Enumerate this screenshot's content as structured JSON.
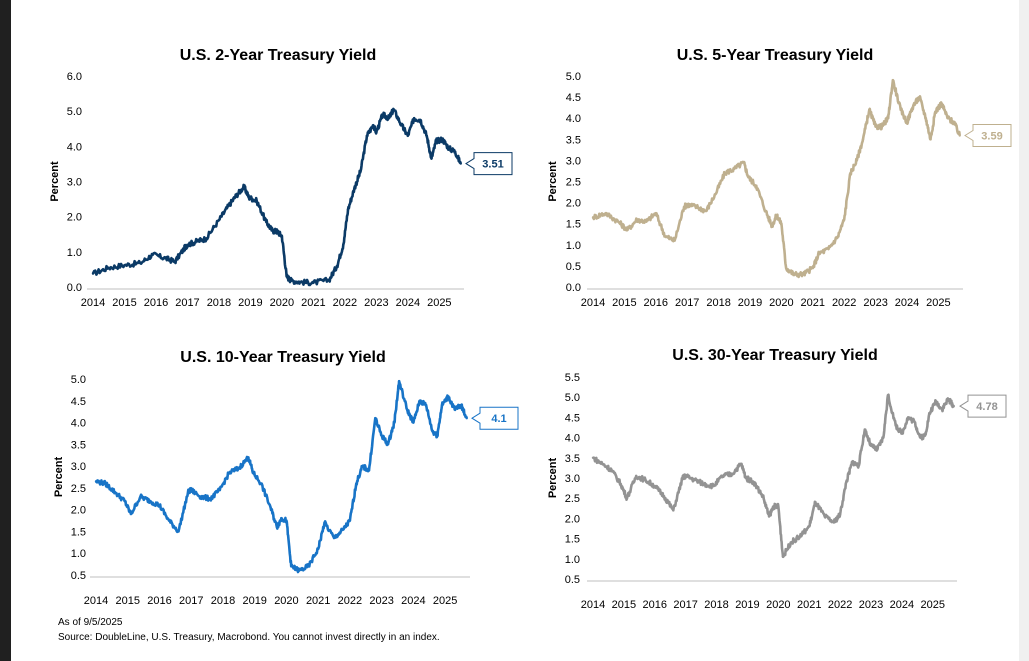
{
  "footnote": {
    "as_of": "As of 9/5/2025",
    "source": "Source: DoubleLine, U.S. Treasury, Macrobond. You cannot invest directly in an index."
  },
  "chart_data": [
    {
      "type": "line",
      "title": "U.S. 2-Year Treasury Yield",
      "ylabel": "Percent",
      "xlabel": "",
      "ylim": [
        0,
        6
      ],
      "yticks": [
        "0.0",
        "1.0",
        "2.0",
        "3.0",
        "4.0",
        "5.0",
        "6.0"
      ],
      "xticks": [
        "2014",
        "2015",
        "2016",
        "2017",
        "2018",
        "2019",
        "2020",
        "2021",
        "2022",
        "2023",
        "2024",
        "2025"
      ],
      "color": "#0b3a66",
      "last_value_label": "3.51",
      "x": [
        2014.0,
        2014.5,
        2015.0,
        2015.5,
        2015.9,
        2016.3,
        2016.6,
        2016.9,
        2017.0,
        2017.3,
        2017.6,
        2018.0,
        2018.3,
        2018.55,
        2018.8,
        2018.95,
        2019.2,
        2019.5,
        2019.7,
        2019.85,
        2020.0,
        2020.15,
        2020.3,
        2020.6,
        2021.0,
        2021.5,
        2021.75,
        2021.95,
        2022.1,
        2022.3,
        2022.5,
        2022.7,
        2022.9,
        2023.0,
        2023.2,
        2023.4,
        2023.55,
        2023.8,
        2024.0,
        2024.2,
        2024.4,
        2024.6,
        2024.75,
        2024.9,
        2025.1,
        2025.3,
        2025.5,
        2025.68
      ],
      "values": [
        0.38,
        0.55,
        0.62,
        0.68,
        0.92,
        0.82,
        0.72,
        1.1,
        1.2,
        1.3,
        1.38,
        1.9,
        2.3,
        2.6,
        2.85,
        2.55,
        2.45,
        1.85,
        1.6,
        1.58,
        1.45,
        0.3,
        0.18,
        0.14,
        0.12,
        0.2,
        0.6,
        1.2,
        2.2,
        2.8,
        3.3,
        4.3,
        4.6,
        4.4,
        4.9,
        4.8,
        5.05,
        4.6,
        4.3,
        4.8,
        4.75,
        4.3,
        3.65,
        4.15,
        4.2,
        3.95,
        3.85,
        3.51
      ]
    },
    {
      "type": "line",
      "title": "U.S. 5-Year Treasury Yield",
      "ylabel": "Percent",
      "xlabel": "",
      "ylim": [
        0,
        5
      ],
      "yticks": [
        "0.0",
        "0.5",
        "1.0",
        "1.5",
        "2.0",
        "2.5",
        "3.0",
        "3.5",
        "4.0",
        "4.5",
        "5.0"
      ],
      "xticks": [
        "2014",
        "2015",
        "2016",
        "2017",
        "2018",
        "2019",
        "2020",
        "2021",
        "2022",
        "2023",
        "2024",
        "2025"
      ],
      "color": "#bfb08f",
      "last_value_label": "3.59",
      "x": [
        2014.0,
        2014.4,
        2014.8,
        2015.1,
        2015.4,
        2015.7,
        2016.0,
        2016.3,
        2016.6,
        2016.9,
        2017.0,
        2017.3,
        2017.6,
        2017.9,
        2018.2,
        2018.5,
        2018.8,
        2018.95,
        2019.2,
        2019.5,
        2019.7,
        2019.85,
        2020.0,
        2020.15,
        2020.4,
        2020.7,
        2021.0,
        2021.2,
        2021.5,
        2021.8,
        2022.0,
        2022.2,
        2022.4,
        2022.6,
        2022.8,
        2023.0,
        2023.2,
        2023.4,
        2023.55,
        2023.8,
        2024.0,
        2024.2,
        2024.4,
        2024.6,
        2024.75,
        2024.9,
        2025.1,
        2025.3,
        2025.5,
        2025.68
      ],
      "values": [
        1.65,
        1.75,
        1.55,
        1.35,
        1.6,
        1.55,
        1.75,
        1.2,
        1.1,
        1.9,
        1.95,
        1.9,
        1.8,
        2.2,
        2.7,
        2.8,
        2.95,
        2.6,
        2.4,
        1.8,
        1.45,
        1.7,
        1.5,
        0.45,
        0.3,
        0.3,
        0.45,
        0.8,
        0.9,
        1.2,
        1.6,
        2.7,
        3.0,
        3.5,
        4.2,
        3.8,
        3.8,
        4.0,
        4.9,
        4.2,
        3.9,
        4.3,
        4.5,
        4.0,
        3.5,
        4.15,
        4.35,
        4.0,
        3.9,
        3.59
      ]
    },
    {
      "type": "line",
      "title": "U.S. 10-Year Treasury Yield",
      "ylabel": "Percent",
      "xlabel": "",
      "ylim": [
        0.5,
        5
      ],
      "yticks": [
        "0.5",
        "1.0",
        "1.5",
        "2.0",
        "2.5",
        "3.0",
        "3.5",
        "4.0",
        "4.5",
        "5.0"
      ],
      "xticks": [
        "2014",
        "2015",
        "2016",
        "2017",
        "2018",
        "2019",
        "2020",
        "2021",
        "2022",
        "2023",
        "2024",
        "2025"
      ],
      "color": "#1874c7",
      "last_value_label": "4.1",
      "x": [
        2014.0,
        2014.3,
        2014.6,
        2014.9,
        2015.1,
        2015.4,
        2015.7,
        2016.0,
        2016.3,
        2016.6,
        2016.9,
        2017.0,
        2017.3,
        2017.6,
        2017.9,
        2018.2,
        2018.5,
        2018.8,
        2018.95,
        2019.2,
        2019.5,
        2019.7,
        2019.85,
        2020.0,
        2020.15,
        2020.4,
        2020.7,
        2021.0,
        2021.2,
        2021.5,
        2021.8,
        2022.0,
        2022.2,
        2022.4,
        2022.6,
        2022.8,
        2023.0,
        2023.2,
        2023.4,
        2023.55,
        2023.8,
        2024.0,
        2024.2,
        2024.4,
        2024.6,
        2024.75,
        2024.9,
        2025.1,
        2025.3,
        2025.5,
        2025.68
      ],
      "values": [
        2.65,
        2.6,
        2.4,
        2.2,
        1.9,
        2.3,
        2.2,
        2.1,
        1.75,
        1.5,
        2.4,
        2.45,
        2.3,
        2.25,
        2.45,
        2.85,
        2.95,
        3.2,
        2.85,
        2.6,
        2.05,
        1.6,
        1.8,
        1.75,
        0.7,
        0.6,
        0.7,
        1.1,
        1.7,
        1.35,
        1.55,
        1.75,
        2.6,
        3.0,
        2.9,
        4.1,
        3.7,
        3.5,
        4.0,
        4.95,
        4.3,
        4.0,
        4.5,
        4.4,
        3.8,
        3.7,
        4.4,
        4.6,
        4.3,
        4.4,
        4.1
      ]
    },
    {
      "type": "line",
      "title": "U.S. 30-Year Treasury Yield",
      "ylabel": "Percent",
      "xlabel": "",
      "ylim": [
        0.5,
        5.5
      ],
      "yticks": [
        "0.5",
        "1.0",
        "1.5",
        "2.0",
        "2.5",
        "3.0",
        "3.5",
        "4.0",
        "4.5",
        "5.0",
        "5.5"
      ],
      "xticks": [
        "2014",
        "2015",
        "2016",
        "2017",
        "2018",
        "2019",
        "2020",
        "2021",
        "2022",
        "2023",
        "2024",
        "2025"
      ],
      "color": "#939393",
      "last_value_label": "4.78",
      "x": [
        2014.0,
        2014.3,
        2014.6,
        2014.9,
        2015.1,
        2015.4,
        2015.7,
        2016.0,
        2016.3,
        2016.6,
        2016.9,
        2017.0,
        2017.3,
        2017.6,
        2017.9,
        2018.2,
        2018.5,
        2018.8,
        2018.95,
        2019.2,
        2019.5,
        2019.7,
        2019.85,
        2020.0,
        2020.15,
        2020.4,
        2020.7,
        2021.0,
        2021.2,
        2021.5,
        2021.8,
        2022.0,
        2022.2,
        2022.4,
        2022.6,
        2022.8,
        2023.0,
        2023.2,
        2023.4,
        2023.55,
        2023.8,
        2024.0,
        2024.2,
        2024.4,
        2024.6,
        2024.75,
        2024.9,
        2025.1,
        2025.3,
        2025.5,
        2025.68
      ],
      "values": [
        3.5,
        3.35,
        3.2,
        2.85,
        2.5,
        3.05,
        2.95,
        2.8,
        2.55,
        2.2,
        3.0,
        3.05,
        2.95,
        2.85,
        2.8,
        3.05,
        3.1,
        3.35,
        3.0,
        2.9,
        2.55,
        2.05,
        2.3,
        2.3,
        1.05,
        1.4,
        1.55,
        1.8,
        2.4,
        2.05,
        1.9,
        2.1,
        2.9,
        3.4,
        3.3,
        4.2,
        3.8,
        3.7,
        4.0,
        5.05,
        4.3,
        4.1,
        4.5,
        4.4,
        4.0,
        4.05,
        4.6,
        4.9,
        4.7,
        4.95,
        4.78
      ]
    }
  ]
}
